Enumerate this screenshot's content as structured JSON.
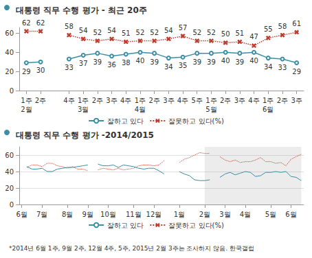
{
  "chart_data": [
    {
      "type": "line",
      "title": "대통령 직무 수행 평가 - 최근 20주",
      "categories": [
        "1주",
        "2주",
        null,
        "4주",
        "1주",
        "2주",
        "3주",
        "4주",
        "1주",
        "2주",
        "3주",
        "4주",
        "5주",
        "1주",
        "2주",
        "3주",
        "4주",
        "1주",
        "2주",
        "3주"
      ],
      "months": [
        "2월",
        null,
        null,
        null,
        "3월",
        null,
        null,
        null,
        "4월",
        null,
        null,
        null,
        null,
        "5월",
        null,
        null,
        null,
        "6월",
        null,
        null
      ],
      "series": [
        {
          "name": "잘하고 있다",
          "color": "#3b8ea5",
          "marker": "circle",
          "line_style": "solid",
          "values": [
            29,
            30,
            null,
            33,
            37,
            39,
            36,
            38,
            40,
            39,
            34,
            35,
            39,
            39,
            40,
            39,
            40,
            34,
            33,
            29
          ]
        },
        {
          "name": "잘못하고 있다(%)",
          "color": "#c0392b",
          "marker": "x",
          "line_style": "dotted",
          "values": [
            62,
            62,
            null,
            58,
            54,
            52,
            54,
            51,
            52,
            52,
            54,
            57,
            52,
            52,
            50,
            51,
            47,
            55,
            58,
            61
          ]
        }
      ],
      "ylim": [
        0,
        66
      ],
      "yticks": [
        0,
        20,
        40,
        60
      ],
      "grid": false,
      "data_labels": true,
      "legend": "bottom"
    },
    {
      "type": "line",
      "title": "대통령 직무 수행 평가 -2014/2015",
      "categories": [
        "6월",
        null,
        null,
        null,
        "7월",
        null,
        null,
        null,
        null,
        "8월",
        null,
        null,
        null,
        "9월",
        null,
        null,
        null,
        "10월",
        null,
        null,
        null,
        null,
        "11월",
        null,
        null,
        null,
        "12월",
        null,
        null,
        null,
        null,
        "1월",
        null,
        null,
        null,
        null,
        "2월",
        null,
        null,
        null,
        "3월",
        null,
        null,
        null,
        "4월",
        null,
        null,
        null,
        null,
        "5월",
        null,
        null,
        null,
        "6월",
        null,
        null
      ],
      "series": [
        {
          "name": "잘하고 있다",
          "color": "#3b8ea5",
          "marker": "none",
          "line_style": "solid",
          "values": [
            null,
            46,
            43,
            43,
            44,
            40,
            40,
            43,
            44,
            45,
            45,
            46,
            47,
            48,
            null,
            49,
            47,
            47,
            48,
            45,
            48,
            47,
            46,
            44,
            43,
            44,
            44,
            41,
            37,
            null,
            null,
            40,
            37,
            35,
            30,
            29,
            29,
            30,
            null,
            33,
            37,
            39,
            36,
            38,
            40,
            39,
            34,
            35,
            39,
            39,
            40,
            39,
            40,
            34,
            33,
            29
          ]
        },
        {
          "name": "잘못하고 있다(%)",
          "color": "#c0392b",
          "marker": "none",
          "line_style": "dotted",
          "values": [
            null,
            45,
            48,
            48,
            46,
            50,
            50,
            47,
            46,
            44,
            46,
            43,
            43,
            41,
            null,
            42,
            44,
            43,
            42,
            44,
            42,
            43,
            44,
            47,
            48,
            48,
            47,
            48,
            53,
            null,
            null,
            51,
            55,
            57,
            60,
            63,
            62,
            62,
            null,
            58,
            54,
            52,
            54,
            51,
            52,
            52,
            54,
            57,
            52,
            52,
            50,
            51,
            47,
            55,
            58,
            61
          ]
        }
      ],
      "ylim": [
        0,
        70
      ],
      "yticks": [
        0,
        20,
        40,
        60
      ],
      "grid": true,
      "data_labels": false,
      "legend": "bottom",
      "note": "*2014년 6월 1주, 9월 2주, 12월 4주, 5주, 2015년 2월 3주는 조사하지 않음. 한국갤럽"
    }
  ]
}
